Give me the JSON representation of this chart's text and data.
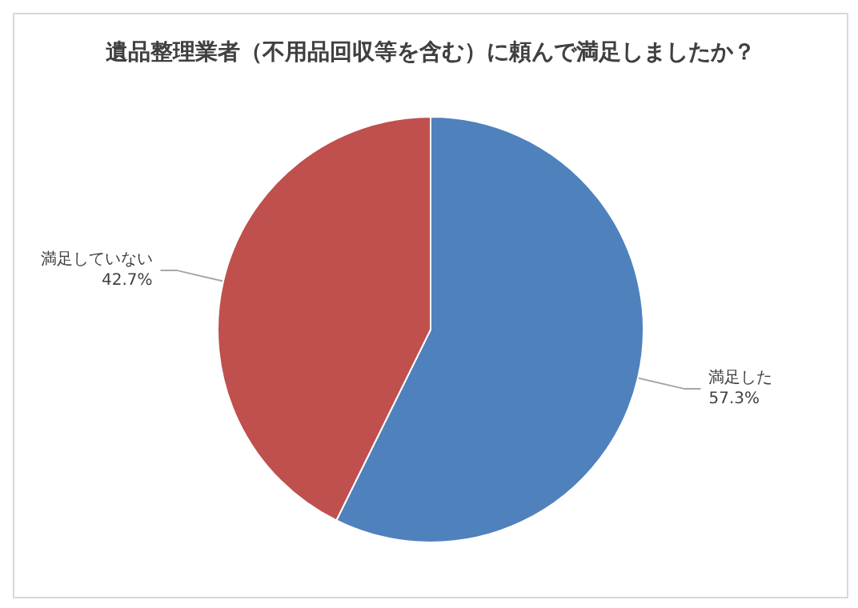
{
  "chart_data": {
    "type": "pie",
    "title": "遺品整理業者（不用品回収等を含む）に頼んで満足しましたか？",
    "categories": [
      "満足した",
      "満足していない"
    ],
    "values": [
      57.3,
      42.7
    ],
    "value_labels": [
      "57.3%",
      "42.7%"
    ],
    "colors": [
      "#4f81bd",
      "#c0504d"
    ],
    "legend": false
  }
}
